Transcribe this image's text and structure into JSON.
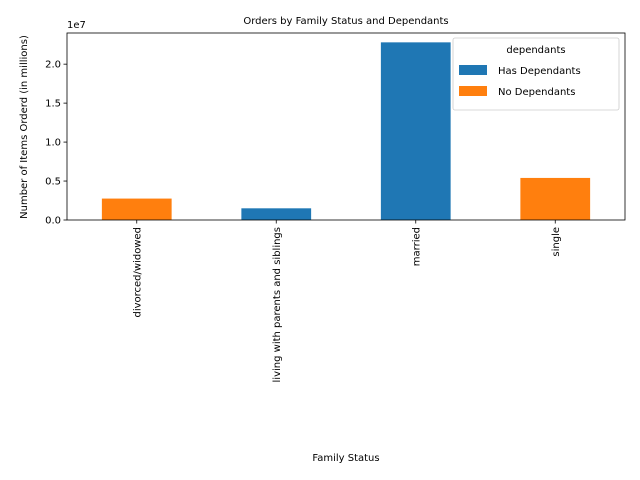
{
  "chart_data": {
    "type": "bar",
    "stacked": true,
    "title": "Orders by Family Status and Dependants",
    "xlabel": "Family Status",
    "ylabel": "Number of Items Orderd (in millions)",
    "y_offset_text": "1e7",
    "categories": [
      "divorced/widowed",
      "living with parents and siblings",
      "married",
      "single"
    ],
    "series": [
      {
        "name": "Has Dependants",
        "color": "#1f77b4",
        "values": [
          0,
          1500000,
          22800000,
          0
        ]
      },
      {
        "name": "No Dependants",
        "color": "#ff7f0e",
        "values": [
          2750000,
          0,
          0,
          5400000
        ]
      }
    ],
    "ylim": [
      0,
      24000000
    ],
    "yticks": [
      {
        "value": 0,
        "label": "0.0"
      },
      {
        "value": 5000000,
        "label": "0.5"
      },
      {
        "value": 10000000,
        "label": "1.0"
      },
      {
        "value": 15000000,
        "label": "1.5"
      },
      {
        "value": 20000000,
        "label": "2.0"
      }
    ],
    "legend_title": "dependants",
    "legend_position": "top-right",
    "grid": false
  }
}
